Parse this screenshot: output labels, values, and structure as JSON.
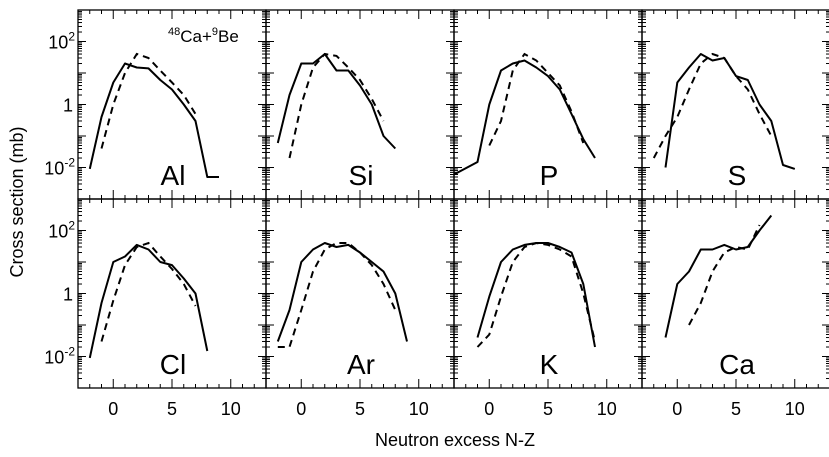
{
  "chart_data": {
    "type": "line",
    "grid": false,
    "layout": "2x4 panel grid sharing axes",
    "xlabel": "Neutron excess N-Z",
    "ylabel": "Cross section (mb)",
    "y_scale": "log",
    "annotation": {
      "base": "Ca+",
      "sup1": "48",
      "sup2": "9",
      "tail": "Be"
    },
    "y_ticks": [
      {
        "value": 0.01,
        "base": "10",
        "exp": "-2"
      },
      {
        "value": 1,
        "base": "1",
        "exp": ""
      },
      {
        "value": 100,
        "base": "10",
        "exp": "2"
      }
    ],
    "x_ticks": [
      0,
      5,
      10
    ],
    "panels": [
      {
        "element": "Al",
        "xlim": [
          -3,
          13
        ],
        "solid": [
          [
            -2,
            0.009
          ],
          [
            -1,
            0.4
          ],
          [
            0,
            5
          ],
          [
            1,
            20
          ],
          [
            2,
            15
          ],
          [
            3,
            14
          ],
          [
            4,
            6
          ],
          [
            5,
            3
          ],
          [
            6,
            1
          ],
          [
            7,
            0.3
          ],
          [
            8,
            0.005
          ],
          [
            9,
            0.005
          ]
        ],
        "dashed": [
          [
            -1,
            0.04
          ],
          [
            0,
            1
          ],
          [
            1,
            10
          ],
          [
            2,
            40
          ],
          [
            3,
            30
          ],
          [
            4,
            12
          ],
          [
            5,
            5
          ],
          [
            6,
            2
          ],
          [
            7,
            0.5
          ]
        ]
      },
      {
        "element": "Si",
        "xlim": [
          -3,
          13
        ],
        "solid": [
          [
            -2,
            0.06
          ],
          [
            -1,
            2
          ],
          [
            0,
            20
          ],
          [
            1,
            20
          ],
          [
            2,
            40
          ],
          [
            3,
            12
          ],
          [
            4,
            12
          ],
          [
            5,
            4
          ],
          [
            6,
            1
          ],
          [
            7,
            0.1
          ],
          [
            8,
            0.04
          ]
        ],
        "dashed": [
          [
            -1,
            0.02
          ],
          [
            0,
            1
          ],
          [
            1,
            15
          ],
          [
            2,
            40
          ],
          [
            3,
            35
          ],
          [
            4,
            15
          ],
          [
            5,
            6
          ],
          [
            6,
            1.5
          ],
          [
            7,
            0.3
          ]
        ]
      },
      {
        "element": "P",
        "xlim": [
          -3,
          13
        ],
        "solid": [
          [
            -3,
            0.006
          ],
          [
            -1,
            0.015
          ],
          [
            0,
            1
          ],
          [
            1,
            12
          ],
          [
            2,
            20
          ],
          [
            3,
            25
          ],
          [
            4,
            15
          ],
          [
            5,
            8
          ],
          [
            6,
            3
          ],
          [
            7,
            0.5
          ],
          [
            8,
            0.08
          ],
          [
            9,
            0.02
          ]
        ],
        "dashed": [
          [
            0,
            0.05
          ],
          [
            1,
            0.3
          ],
          [
            2,
            12
          ],
          [
            3,
            40
          ],
          [
            4,
            25
          ],
          [
            5,
            10
          ],
          [
            6,
            4
          ],
          [
            7,
            0.6
          ],
          [
            8,
            0.06
          ]
        ]
      },
      {
        "element": "S",
        "xlim": [
          -3,
          13
        ],
        "solid": [
          [
            -1,
            0.01
          ],
          [
            0,
            5
          ],
          [
            1,
            15
          ],
          [
            2,
            40
          ],
          [
            3,
            25
          ],
          [
            4,
            30
          ],
          [
            5,
            8
          ],
          [
            6,
            6
          ],
          [
            7,
            1
          ],
          [
            8,
            0.3
          ],
          [
            9,
            0.012
          ],
          [
            10,
            0.009
          ]
        ],
        "dashed": [
          [
            -2,
            0.02
          ],
          [
            -1,
            0.1
          ],
          [
            0,
            0.4
          ],
          [
            1,
            3
          ],
          [
            2,
            20
          ],
          [
            3,
            40
          ],
          [
            4,
            30
          ],
          [
            5,
            8
          ],
          [
            6,
            3
          ],
          [
            7,
            0.5
          ],
          [
            8,
            0.1
          ]
        ]
      },
      {
        "element": "Cl",
        "xlim": [
          -3,
          13
        ],
        "solid": [
          [
            -2,
            0.009
          ],
          [
            -1,
            0.5
          ],
          [
            0,
            10
          ],
          [
            1,
            15
          ],
          [
            2,
            35
          ],
          [
            3,
            25
          ],
          [
            4,
            10
          ],
          [
            5,
            8
          ],
          [
            6,
            3
          ],
          [
            7,
            1
          ],
          [
            8,
            0.015
          ]
        ],
        "dashed": [
          [
            -1,
            0.03
          ],
          [
            0,
            0.6
          ],
          [
            1,
            8
          ],
          [
            2,
            30
          ],
          [
            3,
            40
          ],
          [
            4,
            15
          ],
          [
            5,
            6
          ],
          [
            6,
            2
          ],
          [
            7,
            0.4
          ]
        ]
      },
      {
        "element": "Ar",
        "xlim": [
          -3,
          13
        ],
        "solid": [
          [
            -2,
            0.03
          ],
          [
            -1,
            0.3
          ],
          [
            0,
            10
          ],
          [
            1,
            25
          ],
          [
            2,
            40
          ],
          [
            3,
            30
          ],
          [
            4,
            35
          ],
          [
            5,
            20
          ],
          [
            6,
            10
          ],
          [
            7,
            5
          ],
          [
            8,
            1
          ],
          [
            9,
            0.03
          ]
        ],
        "dashed": [
          [
            -2,
            0.02
          ],
          [
            -1,
            0.02
          ],
          [
            0,
            0.3
          ],
          [
            1,
            5
          ],
          [
            2,
            25
          ],
          [
            3,
            40
          ],
          [
            4,
            40
          ],
          [
            5,
            20
          ],
          [
            6,
            8
          ],
          [
            7,
            2
          ],
          [
            8,
            0.3
          ]
        ]
      },
      {
        "element": "K",
        "xlim": [
          -3,
          13
        ],
        "solid": [
          [
            -1,
            0.04
          ],
          [
            0,
            0.8
          ],
          [
            1,
            10
          ],
          [
            2,
            25
          ],
          [
            3,
            35
          ],
          [
            4,
            40
          ],
          [
            5,
            40
          ],
          [
            6,
            30
          ],
          [
            7,
            20
          ],
          [
            8,
            2
          ],
          [
            9,
            0.02
          ]
        ],
        "dashed": [
          [
            -1,
            0.02
          ],
          [
            0,
            0.05
          ],
          [
            1,
            0.8
          ],
          [
            2,
            10
          ],
          [
            3,
            30
          ],
          [
            4,
            40
          ],
          [
            5,
            35
          ],
          [
            6,
            25
          ],
          [
            7,
            15
          ],
          [
            8,
            1
          ],
          [
            9,
            0.03
          ]
        ]
      },
      {
        "element": "Ca",
        "xlim": [
          -3,
          13
        ],
        "solid": [
          [
            -1,
            0.04
          ],
          [
            0,
            2
          ],
          [
            1,
            5
          ],
          [
            2,
            25
          ],
          [
            3,
            25
          ],
          [
            4,
            35
          ],
          [
            5,
            25
          ],
          [
            6,
            30
          ],
          [
            7,
            100
          ],
          [
            8,
            300
          ]
        ],
        "dashed": [
          [
            1,
            0.1
          ],
          [
            2,
            0.5
          ],
          [
            3,
            5
          ],
          [
            4,
            20
          ],
          [
            5,
            30
          ],
          [
            6,
            25
          ],
          [
            7,
            150
          ]
        ]
      }
    ]
  }
}
